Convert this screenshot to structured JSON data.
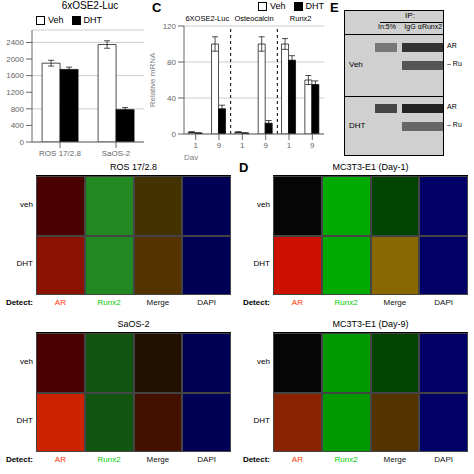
{
  "chart_data": [
    {
      "type": "bar",
      "title": "6xOSE2-Luc",
      "categories": [
        "ROS 17/2.8",
        "SaOS-2"
      ],
      "series": [
        {
          "name": "Veh",
          "color": "#ffffff",
          "values": [
            1900,
            2350
          ],
          "yerr": [
            70,
            90
          ]
        },
        {
          "name": "DHT",
          "color": "#000000",
          "values": [
            1750,
            780
          ],
          "yerr": [
            55,
            50
          ]
        }
      ],
      "edge_color": "#000000",
      "ylim": [
        0,
        2700
      ],
      "yticks": [
        0,
        400,
        800,
        1200,
        1600,
        2000,
        2400
      ],
      "grid": true,
      "legend": "upper left"
    },
    {
      "type": "bar",
      "panel": "C",
      "ylabel": "Relative mRNA",
      "xlabel": "Day",
      "categories": [
        "1",
        "9",
        "1",
        "9",
        "1",
        "9"
      ],
      "group_labels": [
        "6XOSE2-Luc",
        "Osteocalcin",
        "Runx2"
      ],
      "series": [
        {
          "name": "Veh",
          "color": "#ffffff",
          "values": [
            2,
            100,
            2,
            100,
            100,
            60
          ],
          "yerr": [
            0.5,
            8,
            0.5,
            8,
            6,
            5
          ]
        },
        {
          "name": "DHT",
          "color": "#000000",
          "values": [
            1,
            28,
            1,
            12,
            82,
            55
          ],
          "yerr": [
            0.3,
            4,
            0.3,
            3,
            5,
            4
          ]
        }
      ],
      "edge_color": "#000000",
      "ylim": [
        0,
        120
      ],
      "yticks": [
        0,
        40,
        80,
        120
      ],
      "grid": true,
      "legend": "upper right"
    },
    {
      "type": "blot",
      "panel": "E",
      "color": "#d0d0d0",
      "header": "IP:",
      "columns": [
        "In:5%",
        "IgG",
        "αRunx2"
      ],
      "rows": [
        {
          "name": "Veh",
          "bands": [
            {
              "label": "AR",
              "colors": [
                "#777777",
                "#333333"
              ]
            },
            {
              "label": "– Ru",
              "colors": [
                null,
                "#555555"
              ]
            }
          ]
        },
        {
          "name": "DHT",
          "bands": [
            {
              "label": "AR",
              "colors": [
                "#444444",
                "#222222"
              ]
            },
            {
              "label": "– Ru",
              "colors": [
                null,
                "#666666"
              ]
            }
          ]
        }
      ]
    },
    {
      "type": "micrograph",
      "title": "ROS 17/2.8",
      "categories": [
        "veh",
        "DHT"
      ],
      "detect_label": "Detect:",
      "series": [
        {
          "name": "AR",
          "color": "#ff3300",
          "colors": [
            "#4a0000",
            "#8b1100"
          ]
        },
        {
          "name": "Runx2",
          "color": "#00cc00",
          "colors": [
            "#228822",
            "#228822"
          ]
        },
        {
          "name": "Merge",
          "color": "#111111",
          "colors": [
            "#443300",
            "#553300"
          ]
        },
        {
          "name": "DAPI",
          "color": "#111111",
          "colors": [
            "#000055",
            "#000055"
          ]
        }
      ]
    },
    {
      "type": "micrograph",
      "panel": "D",
      "title": "MC3T3-E1 (Day-1)",
      "categories": [
        "veh",
        "DHT"
      ],
      "detect_label": "Detect:",
      "series": [
        {
          "name": "AR",
          "color": "#ff3300",
          "colors": [
            "#050505",
            "#cc1100"
          ]
        },
        {
          "name": "Runx2",
          "color": "#00cc00",
          "colors": [
            "#00aa00",
            "#00aa00"
          ]
        },
        {
          "name": "Merge",
          "color": "#111111",
          "colors": [
            "#004400",
            "#886600"
          ]
        },
        {
          "name": "DAPI",
          "color": "#111111",
          "colors": [
            "#000066",
            "#000066"
          ]
        }
      ]
    },
    {
      "type": "micrograph",
      "title": "SaOS-2",
      "categories": [
        "veh",
        "DHT"
      ],
      "detect_label": "Detect:",
      "series": [
        {
          "name": "AR",
          "color": "#ff3300",
          "colors": [
            "#4a0000",
            "#cc2200"
          ]
        },
        {
          "name": "Runx2",
          "color": "#00cc00",
          "colors": [
            "#115511",
            "#115511"
          ]
        },
        {
          "name": "Merge",
          "color": "#111111",
          "colors": [
            "#221100",
            "#441100"
          ]
        },
        {
          "name": "DAPI",
          "color": "#111111",
          "colors": [
            "#000055",
            "#000055"
          ]
        }
      ]
    },
    {
      "type": "micrograph",
      "title": "MC3T3-E1 (Day-9)",
      "categories": [
        "veh",
        "DHT"
      ],
      "detect_label": "Detect:",
      "series": [
        {
          "name": "AR",
          "color": "#ff3300",
          "colors": [
            "#050505",
            "#882200"
          ]
        },
        {
          "name": "Runx2",
          "color": "#00cc00",
          "colors": [
            "#009900",
            "#009900"
          ]
        },
        {
          "name": "Merge",
          "color": "#111111",
          "colors": [
            "#004400",
            "#553300"
          ]
        },
        {
          "name": "DAPI",
          "color": "#111111",
          "colors": [
            "#000066",
            "#000066"
          ]
        }
      ]
    }
  ]
}
